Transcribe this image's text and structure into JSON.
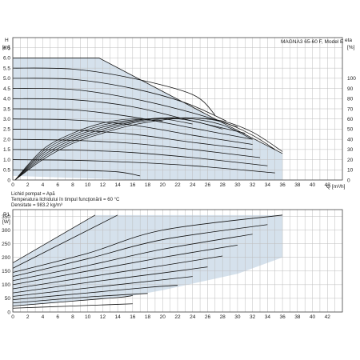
{
  "chart_data": [
    {
      "type": "line",
      "id": "head",
      "title": "MAGNA3 65-60 F, Model E",
      "ylabel_top": "H",
      "ylabel_unit": "[m]",
      "y2label_top": "eta",
      "y2label_unit": "[%]",
      "xlabel": "Q [m³/h]",
      "xlim": [
        0,
        44
      ],
      "ylim": [
        0,
        7
      ],
      "y2lim": [
        0,
        140
      ],
      "xticks": [
        "0",
        "2",
        "4",
        "6",
        "8",
        "10",
        "12",
        "14",
        "16",
        "18",
        "20",
        "22",
        "24",
        "26",
        "28",
        "30",
        "32",
        "34",
        "36",
        "38",
        "40",
        "42"
      ],
      "xtick_values": [
        0,
        2,
        4,
        6,
        8,
        10,
        12,
        14,
        16,
        18,
        20,
        22,
        24,
        26,
        28,
        30,
        32,
        34,
        36,
        38,
        40,
        42
      ],
      "yticks": [
        "0",
        "0.5",
        "1.0",
        "1.5",
        "2.0",
        "2.5",
        "3.0",
        "3.5",
        "4.0",
        "4.5",
        "5.0",
        "5.5",
        "6.0",
        "6.5"
      ],
      "ytick_values": [
        0,
        0.5,
        1,
        1.5,
        2,
        2.5,
        3,
        3.5,
        4,
        4.5,
        5,
        5.5,
        6,
        6.5
      ],
      "y2ticks": [
        "0",
        "10",
        "20",
        "30",
        "40",
        "50",
        "60",
        "70",
        "80",
        "90",
        "100"
      ],
      "y2tick_values": [
        0,
        10,
        20,
        30,
        40,
        50,
        60,
        70,
        80,
        90,
        100
      ],
      "grid": true,
      "envelope": [
        [
          0,
          6.0
        ],
        [
          11.5,
          6.0
        ],
        [
          26.5,
          3.1
        ],
        [
          36,
          1.3
        ],
        [
          36,
          0
        ],
        [
          17,
          0
        ],
        [
          0,
          0.2
        ]
      ],
      "series": [
        {
          "points": [
            [
              0,
              6.0
            ],
            [
              11.5,
              6.0
            ],
            [
              26.5,
              3.1
            ],
            [
              36,
              1.3
            ]
          ]
        },
        {
          "points": [
            [
              0,
              5.5
            ],
            [
              8,
              5.45
            ],
            [
              16,
              5.0
            ],
            [
              24,
              4.2
            ],
            [
              27,
              3.2
            ]
          ]
        },
        {
          "points": [
            [
              0,
              5.0
            ],
            [
              8,
              4.95
            ],
            [
              16,
              4.5
            ],
            [
              23,
              3.8
            ],
            [
              28.5,
              2.9
            ]
          ]
        },
        {
          "points": [
            [
              0,
              4.5
            ],
            [
              8,
              4.45
            ],
            [
              16,
              4.0
            ],
            [
              24,
              3.3
            ],
            [
              30,
              2.6
            ]
          ]
        },
        {
          "points": [
            [
              0,
              4.0
            ],
            [
              8,
              3.95
            ],
            [
              16,
              3.6
            ],
            [
              24,
              2.9
            ],
            [
              31,
              2.3
            ]
          ]
        },
        {
          "points": [
            [
              0,
              3.5
            ],
            [
              8,
              3.45
            ],
            [
              16,
              3.1
            ],
            [
              24,
              2.55
            ],
            [
              32,
              2.0
            ]
          ]
        },
        {
          "points": [
            [
              0,
              3.0
            ],
            [
              8,
              2.95
            ],
            [
              16,
              2.7
            ],
            [
              24,
              2.2
            ],
            [
              32,
              1.75
            ]
          ]
        },
        {
          "points": [
            [
              0,
              2.5
            ],
            [
              8,
              2.45
            ],
            [
              16,
              2.25
            ],
            [
              24,
              1.85
            ],
            [
              32,
              1.5
            ]
          ]
        },
        {
          "points": [
            [
              0,
              2.0
            ],
            [
              8,
              1.95
            ],
            [
              16,
              1.8
            ],
            [
              24,
              1.5
            ],
            [
              33,
              1.1
            ]
          ]
        },
        {
          "points": [
            [
              0,
              1.5
            ],
            [
              8,
              1.47
            ],
            [
              16,
              1.35
            ],
            [
              24,
              1.1
            ],
            [
              34,
              0.7
            ]
          ]
        },
        {
          "points": [
            [
              0,
              1.0
            ],
            [
              8,
              0.97
            ],
            [
              16,
              0.87
            ],
            [
              24,
              0.7
            ],
            [
              35,
              0.35
            ]
          ]
        },
        {
          "points": [
            [
              0,
              0.5
            ],
            [
              8,
              0.48
            ],
            [
              14,
              0.4
            ],
            [
              17,
              0.2
            ]
          ]
        }
      ],
      "eta_series": [
        {
          "points": [
            [
              0.3,
              0
            ],
            [
              4,
              20
            ],
            [
              8,
              36
            ],
            [
              12,
              46
            ],
            [
              16,
              54
            ],
            [
              20,
              59
            ],
            [
              24,
              61
            ],
            [
              28,
              58
            ],
            [
              32,
              47
            ],
            [
              36,
              28
            ]
          ]
        },
        {
          "points": [
            [
              0.3,
              0
            ],
            [
              4,
              22
            ],
            [
              8,
              38
            ],
            [
              12,
              48
            ],
            [
              16,
              56
            ],
            [
              20,
              60
            ],
            [
              24,
              61
            ],
            [
              28,
              57
            ],
            [
              32,
              44
            ],
            [
              35,
              30
            ]
          ]
        },
        {
          "points": [
            [
              0.3,
              0
            ],
            [
              4,
              24
            ],
            [
              8,
              40
            ],
            [
              12,
              50
            ],
            [
              16,
              57
            ],
            [
              20,
              61
            ],
            [
              24,
              60
            ],
            [
              28,
              54
            ],
            [
              32,
              40
            ]
          ]
        },
        {
          "points": [
            [
              0.3,
              0
            ],
            [
              4,
              26
            ],
            [
              8,
              42
            ],
            [
              12,
              52
            ],
            [
              16,
              58
            ],
            [
              20,
              61
            ],
            [
              24,
              58
            ],
            [
              28,
              50
            ]
          ]
        },
        {
          "points": [
            [
              0.3,
              0
            ],
            [
              4,
              28
            ],
            [
              8,
              44
            ],
            [
              12,
              54
            ],
            [
              16,
              59
            ],
            [
              20,
              60
            ],
            [
              24,
              55
            ]
          ]
        },
        {
          "points": [
            [
              0.3,
              0
            ],
            [
              4,
              30
            ],
            [
              8,
              46
            ],
            [
              12,
              56
            ],
            [
              16,
              60
            ],
            [
              20,
              58
            ]
          ]
        }
      ]
    },
    {
      "type": "line",
      "id": "power",
      "ylabel_top": "P1",
      "ylabel_unit": "[W]",
      "xlim": [
        0,
        44
      ],
      "ylim": [
        0,
        375
      ],
      "xticks": [
        "0",
        "2",
        "4",
        "6",
        "8",
        "10",
        "12",
        "14",
        "16",
        "18",
        "20",
        "22",
        "24",
        "26",
        "28",
        "30",
        "32",
        "34",
        "36",
        "38",
        "40",
        "42"
      ],
      "xtick_values": [
        0,
        2,
        4,
        6,
        8,
        10,
        12,
        14,
        16,
        18,
        20,
        22,
        24,
        26,
        28,
        30,
        32,
        34,
        36,
        38,
        40,
        42
      ],
      "yticks": [
        "0",
        "50",
        "100",
        "150",
        "200",
        "250",
        "300",
        "350"
      ],
      "ytick_values": [
        0,
        50,
        100,
        150,
        200,
        250,
        300,
        350
      ],
      "grid": true,
      "envelope": [
        [
          0,
          180
        ],
        [
          11,
          355
        ],
        [
          36,
          355
        ],
        [
          36,
          200
        ],
        [
          30,
          140
        ],
        [
          20,
          80
        ],
        [
          16,
          60
        ],
        [
          0,
          20
        ]
      ],
      "series": [
        {
          "points": [
            [
              0,
              180
            ],
            [
              11,
              355
            ]
          ]
        },
        {
          "points": [
            [
              0,
              160
            ],
            [
              14,
              355
            ]
          ]
        },
        {
          "points": [
            [
              0,
              145
            ],
            [
              10,
              215
            ],
            [
              20,
              300
            ],
            [
              36,
              355
            ]
          ]
        },
        {
          "points": [
            [
              0,
              130
            ],
            [
              10,
              195
            ],
            [
              20,
              265
            ],
            [
              34,
              320
            ]
          ]
        },
        {
          "points": [
            [
              0,
              115
            ],
            [
              10,
              170
            ],
            [
              20,
              230
            ],
            [
              32,
              285
            ]
          ]
        },
        {
          "points": [
            [
              0,
              100
            ],
            [
              10,
              150
            ],
            [
              20,
              200
            ],
            [
              30,
              245
            ]
          ]
        },
        {
          "points": [
            [
              0,
              85
            ],
            [
              10,
              128
            ],
            [
              20,
              170
            ],
            [
              28,
              205
            ]
          ]
        },
        {
          "points": [
            [
              0,
              70
            ],
            [
              10,
              108
            ],
            [
              20,
              143
            ],
            [
              26,
              165
            ]
          ]
        },
        {
          "points": [
            [
              0,
              57
            ],
            [
              10,
              88
            ],
            [
              20,
              118
            ],
            [
              24,
              130
            ]
          ]
        },
        {
          "points": [
            [
              0,
              45
            ],
            [
              10,
              70
            ],
            [
              18,
              90
            ],
            [
              22,
              98
            ]
          ]
        },
        {
          "points": [
            [
              0,
              33
            ],
            [
              10,
              55
            ],
            [
              18,
              68
            ]
          ]
        },
        {
          "points": [
            [
              0,
              22
            ],
            [
              8,
              40
            ],
            [
              14,
              53
            ],
            [
              16,
              60
            ]
          ]
        },
        {
          "points": [
            [
              0,
              14
            ],
            [
              8,
              22
            ],
            [
              14,
              28
            ],
            [
              16,
              30
            ]
          ]
        }
      ]
    }
  ],
  "notes": {
    "line1": "Lichid pompat = Apă",
    "line2": "Temperatura lichidului în timpul funcţionării = 60 °C",
    "line3": "Densitate = 983.2 kg/m³"
  }
}
